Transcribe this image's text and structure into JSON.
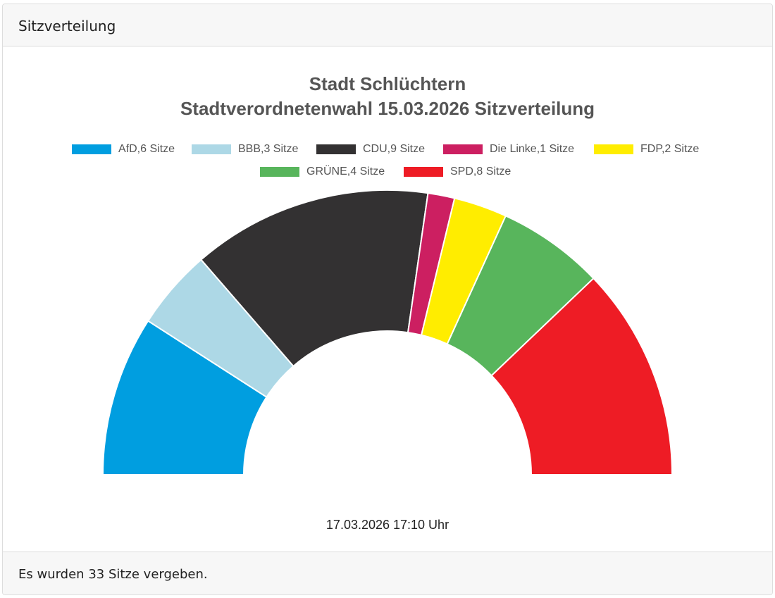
{
  "header": {
    "title": "Sitzverteilung"
  },
  "chart_data": {
    "type": "semidonut",
    "title": [
      "Stadt Schlüchtern",
      "Stadtverordnetenwahl 15.03.2026 Sitzverteilung"
    ],
    "categories": [
      "AfD,6 Sitze",
      "BBB,3 Sitze",
      "CDU,9 Sitze",
      "Die Linke,1 Sitze",
      "FDP,2 Sitze",
      "GRÜNE,4 Sitze",
      "SPD,8 Sitze"
    ],
    "values": [
      6,
      3,
      9,
      1,
      2,
      4,
      8
    ],
    "colors": [
      "#009ee0",
      "#add8e6",
      "#333132",
      "#cc1f61",
      "#ffed00",
      "#58b55c",
      "#ee1c25"
    ],
    "subtitle": "17.03.2026 17:10 Uhr"
  },
  "footer": {
    "text": "Es wurden 33 Sitze vergeben."
  }
}
